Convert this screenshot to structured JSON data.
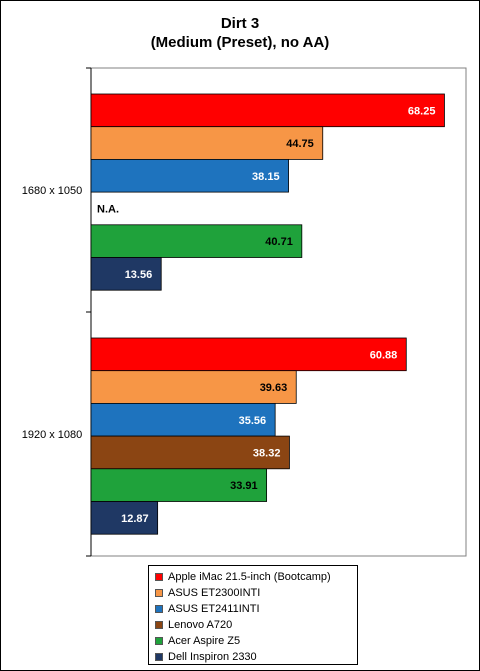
{
  "title_line1": "Dirt 3",
  "title_line2": "(Medium (Preset), no AA)",
  "chart_data": {
    "type": "bar",
    "orientation": "horizontal",
    "categories": [
      "1680 x 1050",
      "1920 x 1080"
    ],
    "series": [
      {
        "name": "Apple iMac 21.5-inch (Bootcamp)",
        "color": "#ff0000",
        "values": [
          68.25,
          60.88
        ]
      },
      {
        "name": "ASUS ET2300INTI",
        "color": "#f79646",
        "values": [
          44.75,
          39.63
        ]
      },
      {
        "name": "ASUS ET2411INTI",
        "color": "#1e73be",
        "values": [
          38.15,
          35.56
        ]
      },
      {
        "name": "Lenovo A720",
        "color": "#8b4513",
        "values": [
          null,
          38.32
        ]
      },
      {
        "name": "Acer Aspire Z5",
        "color": "#1fa23b",
        "values": [
          40.71,
          33.91
        ]
      },
      {
        "name": "Dell Inspiron 2330",
        "color": "#1f3864",
        "values": [
          13.56,
          12.87
        ]
      }
    ],
    "missing_label": "N.A.",
    "xlim": [
      0,
      70
    ],
    "grid": false,
    "legend_position": "bottom"
  }
}
